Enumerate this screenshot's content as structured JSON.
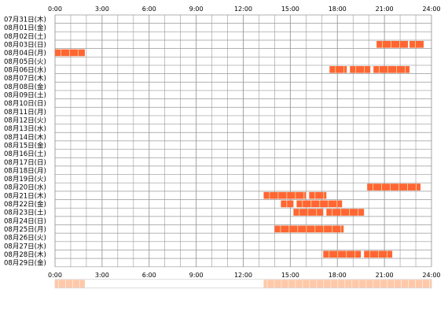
{
  "chart_data": {
    "type": "heatmap",
    "title": "",
    "xlabel": "",
    "ylabel": "",
    "x_range_hours": [
      0,
      24
    ],
    "x_tick_labels": [
      "0:00",
      "3:00",
      "6:00",
      "9:00",
      "12:00",
      "15:00",
      "18:00",
      "21:00",
      "24:00"
    ],
    "grid": true,
    "bar_color": "#ff6633",
    "bar_light_color": "#ffcc99",
    "grid_color": "#999999",
    "summary_strip_color": "#ffc8a8",
    "rows": [
      {
        "label": "07月31日(木)",
        "segments": []
      },
      {
        "label": "08月01日(金)",
        "segments": []
      },
      {
        "label": "08月02日(土)",
        "segments": []
      },
      {
        "label": "08月03日(日)",
        "segments": [
          [
            20.5,
            22.5
          ],
          [
            22.6,
            23.5
          ]
        ]
      },
      {
        "label": "08月04日(月)",
        "segments": [
          [
            0.0,
            1.9
          ]
        ]
      },
      {
        "label": "08月05日(火)",
        "segments": []
      },
      {
        "label": "08月06日(水)",
        "segments": [
          [
            17.5,
            18.6
          ],
          [
            18.8,
            20.1
          ],
          [
            20.3,
            22.6
          ]
        ]
      },
      {
        "label": "08月07日(木)",
        "segments": []
      },
      {
        "label": "08月08日(金)",
        "segments": []
      },
      {
        "label": "08月09日(土)",
        "segments": []
      },
      {
        "label": "08月10日(日)",
        "segments": []
      },
      {
        "label": "08月11日(月)",
        "segments": []
      },
      {
        "label": "08月12日(火)",
        "segments": []
      },
      {
        "label": "08月13日(水)",
        "segments": []
      },
      {
        "label": "08月14日(木)",
        "segments": []
      },
      {
        "label": "08月15日(金)",
        "segments": []
      },
      {
        "label": "08月16日(土)",
        "segments": []
      },
      {
        "label": "08月17日(日)",
        "segments": []
      },
      {
        "label": "08月18日(月)",
        "segments": []
      },
      {
        "label": "08月19日(火)",
        "segments": []
      },
      {
        "label": "08月20日(水)",
        "segments": [
          [
            19.9,
            23.3
          ]
        ]
      },
      {
        "label": "08月21日(木)",
        "segments": [
          [
            13.3,
            16.0
          ],
          [
            16.2,
            17.3
          ]
        ]
      },
      {
        "label": "08月22日(金)",
        "segments": [
          [
            14.4,
            15.2
          ],
          [
            15.4,
            18.3
          ]
        ]
      },
      {
        "label": "08月23日(土)",
        "segments": [
          [
            15.2,
            17.1
          ],
          [
            17.3,
            19.7
          ]
        ]
      },
      {
        "label": "08月24日(日)",
        "segments": []
      },
      {
        "label": "08月25日(月)",
        "segments": [
          [
            14.0,
            18.4
          ]
        ]
      },
      {
        "label": "08月26日(火)",
        "segments": []
      },
      {
        "label": "08月27日(水)",
        "segments": []
      },
      {
        "label": "08月28日(木)",
        "segments": [
          [
            17.1,
            19.5
          ],
          [
            19.7,
            21.5
          ]
        ]
      },
      {
        "label": "08月29日(金)",
        "segments": []
      }
    ],
    "summary_strip_segments": [
      [
        0.0,
        1.9
      ],
      [
        13.3,
        24.0
      ]
    ]
  }
}
